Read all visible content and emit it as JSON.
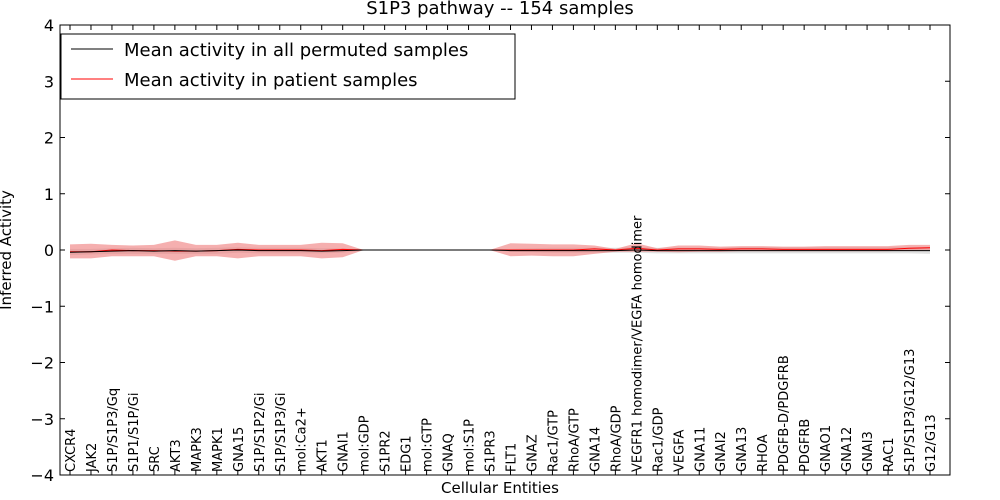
{
  "chart_data": {
    "type": "line",
    "title": "S1P3 pathway -- 154 samples",
    "xlabel": "Cellular Entities",
    "ylabel": "Inferred Activity",
    "ylim": [
      -4,
      4
    ],
    "yticks": [
      -4,
      -3,
      -2,
      -1,
      0,
      1,
      2,
      3,
      4
    ],
    "ytick_labels": [
      "−4",
      "−3",
      "−2",
      "−1",
      "0",
      "1",
      "2",
      "3",
      "4"
    ],
    "grid": false,
    "legend_position": "top-left",
    "categories": [
      "CXCR4",
      "JAK2",
      "S1P/S1P3/Gq",
      "S1P1/S1P/Gi",
      "SRC",
      "AKT3",
      "MAPK3",
      "MAPK1",
      "GNA15",
      "S1P/S1P2/Gi",
      "S1P/S1P3/Gi",
      "mol:Ca2+",
      "AKT1",
      "GNAI1",
      "mol:GDP",
      "S1PR2",
      "EDG1",
      "mol:GTP",
      "GNAQ",
      "mol:S1P",
      "S1PR3",
      "FLT1",
      "GNAZ",
      "Rac1/GTP",
      "RhoA/GTP",
      "GNA14",
      "RhoA/GDP",
      "VEGFR1 homodimer/VEGFA homodimer",
      "Rac1/GDP",
      "VEGFA",
      "GNA11",
      "GNAI2",
      "GNA13",
      "RHOA",
      "PDGFB-D/PDGFRB",
      "PDGFRB",
      "GNAO1",
      "GNA12",
      "GNAI3",
      "RAC1",
      "S1P/S1P3/G12/G13",
      "G12/G13"
    ],
    "series": [
      {
        "name": "Mean activity in all permuted samples",
        "color": "#000000",
        "band_color": "#c8c8c8",
        "values": [
          -0.04,
          -0.03,
          -0.02,
          -0.01,
          -0.02,
          -0.01,
          -0.02,
          -0.01,
          0.0,
          -0.01,
          -0.01,
          -0.01,
          -0.02,
          -0.01,
          0.0,
          0.0,
          0.0,
          0.0,
          0.0,
          0.0,
          0.0,
          -0.01,
          -0.01,
          -0.01,
          -0.01,
          -0.01,
          -0.01,
          0.0,
          -0.01,
          -0.01,
          -0.01,
          -0.01,
          -0.01,
          -0.01,
          -0.01,
          -0.01,
          -0.01,
          -0.01,
          -0.01,
          -0.01,
          -0.01,
          -0.01
        ],
        "lower": [
          -0.09,
          -0.08,
          -0.07,
          -0.07,
          -0.07,
          -0.07,
          -0.07,
          -0.07,
          -0.05,
          -0.06,
          -0.06,
          -0.06,
          -0.06,
          -0.05,
          -0.01,
          -0.01,
          -0.01,
          -0.01,
          -0.01,
          -0.01,
          -0.01,
          -0.03,
          -0.04,
          -0.05,
          -0.05,
          -0.05,
          -0.05,
          -0.05,
          -0.06,
          -0.06,
          -0.06,
          -0.06,
          -0.06,
          -0.06,
          -0.06,
          -0.06,
          -0.06,
          -0.06,
          -0.06,
          -0.06,
          -0.06,
          -0.07
        ],
        "upper": [
          0.02,
          0.02,
          0.03,
          0.04,
          0.03,
          0.04,
          0.03,
          0.04,
          0.05,
          0.04,
          0.04,
          0.04,
          0.03,
          0.03,
          0.01,
          0.01,
          0.01,
          0.01,
          0.01,
          0.01,
          0.01,
          0.02,
          0.03,
          0.04,
          0.04,
          0.04,
          0.04,
          0.05,
          0.04,
          0.04,
          0.04,
          0.04,
          0.05,
          0.05,
          0.05,
          0.05,
          0.05,
          0.05,
          0.05,
          0.05,
          0.05,
          0.05
        ]
      },
      {
        "name": "Mean activity in patient samples",
        "color": "#ff0000",
        "band_color": "#ee7a7a",
        "values": [
          -0.03,
          -0.03,
          0.0,
          -0.01,
          -0.01,
          -0.02,
          -0.02,
          -0.01,
          0.01,
          0.0,
          0.0,
          0.0,
          -0.01,
          0.01,
          0.0,
          0.0,
          0.0,
          0.0,
          0.0,
          0.0,
          0.0,
          0.0,
          0.0,
          0.0,
          0.0,
          0.02,
          0.0,
          0.03,
          0.0,
          0.02,
          0.02,
          0.01,
          0.02,
          0.02,
          0.01,
          0.01,
          0.01,
          0.01,
          0.01,
          0.01,
          0.03,
          0.04
        ],
        "lower": [
          -0.15,
          -0.15,
          -0.11,
          -0.11,
          -0.11,
          -0.19,
          -0.11,
          -0.11,
          -0.15,
          -0.11,
          -0.11,
          -0.11,
          -0.15,
          -0.13,
          0.0,
          0.0,
          0.0,
          0.0,
          0.0,
          0.0,
          0.0,
          -0.11,
          -0.1,
          -0.11,
          -0.11,
          -0.07,
          -0.03,
          -0.03,
          -0.03,
          -0.04,
          -0.03,
          -0.03,
          -0.02,
          -0.02,
          -0.02,
          -0.02,
          -0.02,
          -0.02,
          -0.02,
          -0.02,
          -0.01,
          0.0
        ],
        "upper": [
          0.1,
          0.11,
          0.09,
          0.08,
          0.09,
          0.17,
          0.09,
          0.09,
          0.13,
          0.09,
          0.09,
          0.09,
          0.13,
          0.12,
          0.0,
          0.0,
          0.0,
          0.0,
          0.0,
          0.0,
          0.0,
          0.12,
          0.11,
          0.1,
          0.1,
          0.08,
          0.02,
          0.12,
          0.03,
          0.08,
          0.08,
          0.06,
          0.07,
          0.07,
          0.06,
          0.06,
          0.07,
          0.07,
          0.07,
          0.07,
          0.09,
          0.09
        ]
      }
    ]
  }
}
